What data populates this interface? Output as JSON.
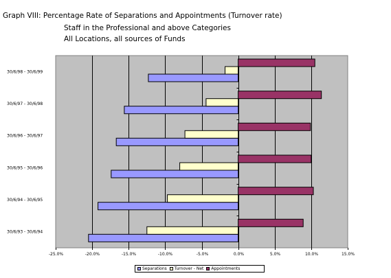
{
  "header": {
    "title": "Graph VIII: Percentage Rate of Separations and Appointments (Turnover rate)",
    "subtitle1": "Staff in the Professional and above Categories",
    "subtitle2": "All Locations, all sources of Funds"
  },
  "chart_data": {
    "type": "bar",
    "orientation": "horizontal",
    "categories": [
      "30/6/98 - 30/6/99",
      "30/6/97 - 30/6/98",
      "30/6/96 - 30/6/97",
      "30/6/95 - 30/6/96",
      "30/6/94 - 30/6/95",
      "30/6/93 - 30/6/94"
    ],
    "series": [
      {
        "name": "Separations",
        "color": "#9999ff",
        "values": [
          -12.3,
          -15.6,
          -16.7,
          -17.4,
          -19.2,
          -20.5
        ]
      },
      {
        "name": "Turnover - Net",
        "color": "#ffffcc",
        "values": [
          -1.8,
          -4.4,
          -7.3,
          -8.0,
          -9.7,
          -12.5
        ]
      },
      {
        "name": "Appointments",
        "color": "#993366",
        "values": [
          10.5,
          11.4,
          9.9,
          10.0,
          10.3,
          8.9
        ]
      }
    ],
    "xlim": [
      -25,
      15
    ],
    "xticks": [
      "-25.0%",
      "-20.0%",
      "-15.0%",
      "-10.0%",
      "-5.0%",
      "0.0%",
      "5.0%",
      "10.0%",
      "15.0%"
    ],
    "grid": true,
    "legend_position": "bottom",
    "plot_background": "#c0c0c0"
  }
}
